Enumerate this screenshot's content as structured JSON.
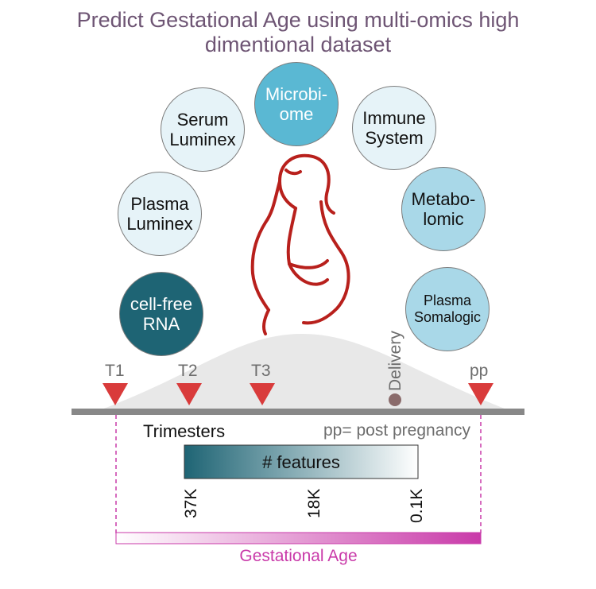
{
  "title": {
    "line1": "Predict Gestational Age using multi-omics high",
    "line2": "dimentional dataset"
  },
  "omics": [
    {
      "label": "Microbi-\nome"
    },
    {
      "label": "Serum\nLuminex"
    },
    {
      "label": "Immune\nSystem"
    },
    {
      "label": "Plasma\nLuminex"
    },
    {
      "label": "Metabo-\nlomic"
    },
    {
      "label": "cell-free\nRNA"
    },
    {
      "label": "Plasma\nSomalogic"
    }
  ],
  "timeline": {
    "markers": [
      "T1",
      "T2",
      "T3",
      "pp"
    ],
    "delivery": "Delivery",
    "trimesters": "Trimesters",
    "pp_note": "pp= post pregnancy"
  },
  "features": {
    "label": "# features",
    "ticks": [
      "37K",
      "18K",
      "0.1K"
    ]
  },
  "gestational_age": "Gestational Age",
  "colors": {
    "title": "#6e5574",
    "marker": "#d93b3b",
    "figure": "#b8201c",
    "age_gradient": "#c93aa9",
    "feature_dark": "#1e6474"
  }
}
